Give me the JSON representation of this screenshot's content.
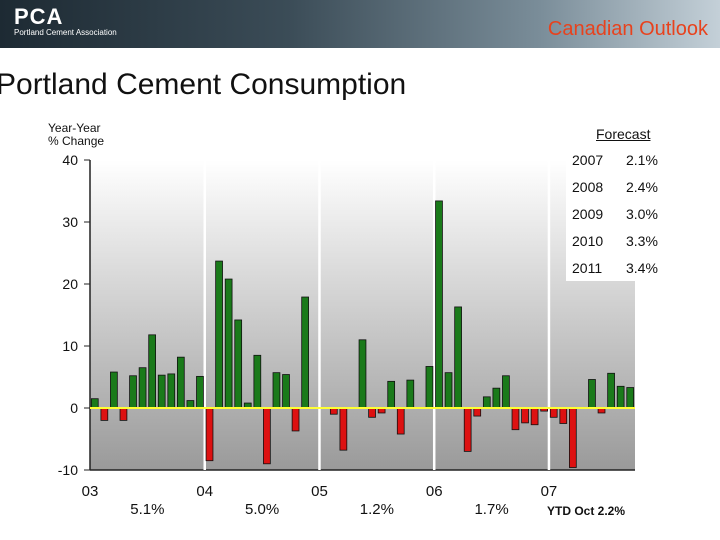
{
  "header": {
    "logo_mark": "PCA",
    "logo_sub": "Portland Cement Association",
    "title": "Canadian Outlook"
  },
  "title": "Portland Cement Consumption",
  "ylabel_line1": "Year-Year",
  "ylabel_line2": "% Change",
  "colors": {
    "positive": "#1a7a1a",
    "negative": "#dd1111",
    "plot_bg": "#a6a6a6",
    "zero_line": "#ffff33"
  },
  "forecast": {
    "heading": "Forecast",
    "rows": [
      {
        "year": "2007",
        "value": "2.1%"
      },
      {
        "year": "2008",
        "value": "2.4%"
      },
      {
        "year": "2009",
        "value": "3.0%"
      },
      {
        "year": "2010",
        "value": "3.3%"
      },
      {
        "year": "2011",
        "value": "3.4%"
      }
    ]
  },
  "ytd_label": "YTD Oct 2.2%",
  "chart_data": {
    "type": "bar",
    "title": "Portland Cement Consumption",
    "ylabel": "Year-Year % Change",
    "ylim": [
      -10,
      40
    ],
    "yticks": [
      -10,
      0,
      10,
      20,
      30,
      40
    ],
    "year_labels": [
      "03",
      "04",
      "05",
      "06",
      "07"
    ],
    "annual_labels": [
      "5.1%",
      "5.0%",
      "1.2%",
      "1.7%"
    ],
    "values": [
      1.5,
      -2,
      5.8,
      -2,
      5.2,
      6.5,
      11.8,
      5.3,
      5.5,
      8.2,
      1.2,
      5.1,
      -8.5,
      23.7,
      20.8,
      14.2,
      0.8,
      8.5,
      -9,
      5.7,
      5.4,
      -3.7,
      17.9,
      0,
      0,
      -1,
      -6.8,
      0,
      11,
      -1.5,
      -0.8,
      4.3,
      -4.2,
      4.5,
      0,
      6.7,
      33.4,
      5.7,
      16.3,
      -7,
      -1.3,
      1.8,
      3.2,
      5.2,
      -3.5,
      -2.4,
      -2.7,
      -0.5,
      -1.5,
      -2.5,
      -9.6,
      0,
      4.6,
      -0.8,
      5.6,
      3.5,
      3.3
    ]
  }
}
